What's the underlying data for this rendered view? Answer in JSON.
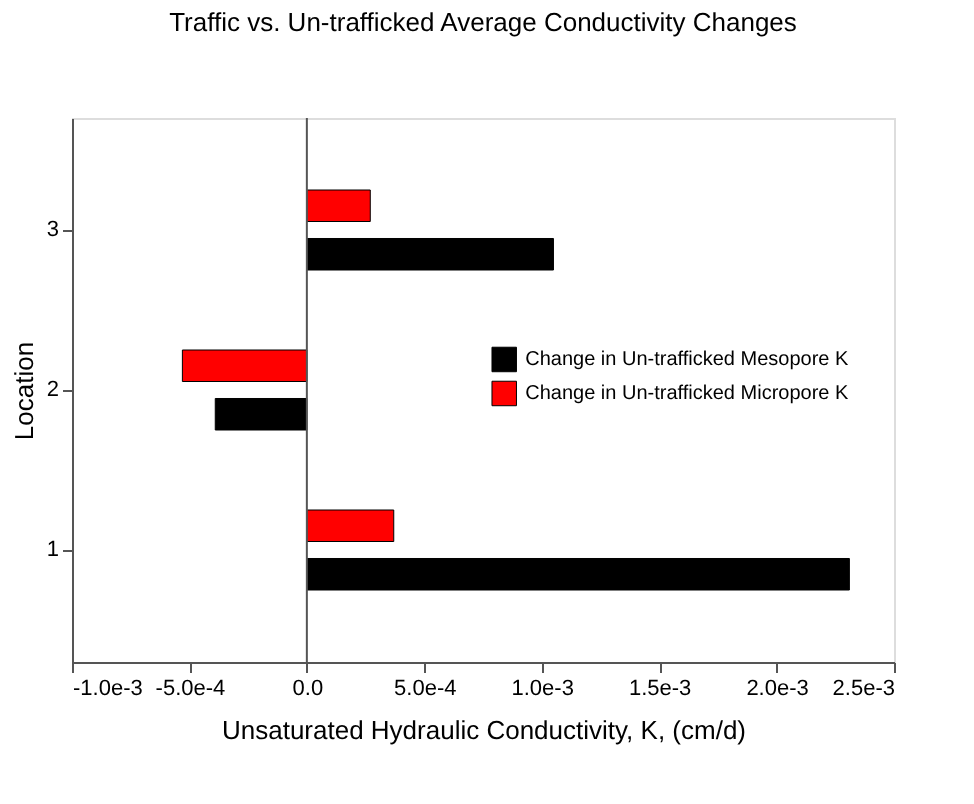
{
  "chart_data": {
    "type": "bar",
    "orientation": "horizontal",
    "title": "Traffic vs. Un-trafficked Average Conductivity Changes",
    "xlabel": "Unsaturated Hydraulic Conductivity, K, (cm/d)",
    "ylabel": "Location",
    "categories": [
      "3",
      "2",
      "1"
    ],
    "series": [
      {
        "name": "Change in Un-trafficked Mesopore K",
        "color": "#000000",
        "values": [
          0.00105,
          -0.00039,
          0.00231
        ]
      },
      {
        "name": "Change in Un-trafficked Micropore K",
        "color": "#ff0000",
        "values": [
          0.00027,
          -0.00053,
          0.00037
        ]
      }
    ],
    "xlim": [
      -0.001,
      0.0025
    ],
    "xticks": [
      {
        "value": -0.001,
        "label": "-1.0e-3"
      },
      {
        "value": -0.0005,
        "label": "-5.0e-4"
      },
      {
        "value": 0,
        "label": "0.0"
      },
      {
        "value": 0.0005,
        "label": "5.0e-4"
      },
      {
        "value": 0.001,
        "label": "1.0e-3"
      },
      {
        "value": 0.0015,
        "label": "1.5e-3"
      },
      {
        "value": 0.002,
        "label": "2.0e-3"
      },
      {
        "value": 0.0025,
        "label": "2.5e-3"
      }
    ],
    "ref_lines": [
      {
        "axis": "x",
        "value": 0,
        "color": "#555555"
      }
    ],
    "legend": "right",
    "grid": false
  }
}
